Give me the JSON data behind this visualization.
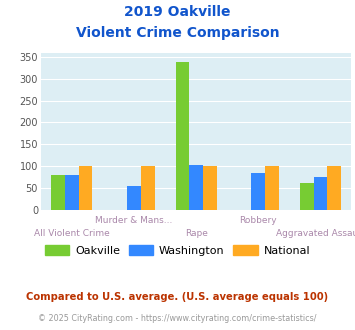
{
  "title_line1": "2019 Oakville",
  "title_line2": "Violent Crime Comparison",
  "categories": [
    "All Violent Crime",
    "Murder & Mans...",
    "Rape",
    "Robbery",
    "Aggravated Assault"
  ],
  "categories_top": [
    "",
    "Murder & Mans...",
    "",
    "Robbery",
    ""
  ],
  "categories_bottom": [
    "All Violent Crime",
    "",
    "Rape",
    "",
    "Aggravated Assault"
  ],
  "series": {
    "Oakville": [
      80,
      0,
      340,
      0,
      60
    ],
    "Washington": [
      80,
      55,
      103,
      85,
      75
    ],
    "National": [
      100,
      100,
      100,
      100,
      100
    ]
  },
  "colors": {
    "Oakville": "#77cc33",
    "Washington": "#3388ff",
    "National": "#ffaa22"
  },
  "ylim": [
    0,
    360
  ],
  "yticks": [
    0,
    50,
    100,
    150,
    200,
    250,
    300,
    350
  ],
  "plot_bg": "#ddeef4",
  "grid_color": "#ffffff",
  "title_color": "#1155cc",
  "label_top_color": "#aa88aa",
  "label_bot_color": "#aa88aa",
  "footnote1": "Compared to U.S. average. (U.S. average equals 100)",
  "footnote2": "© 2025 CityRating.com - https://www.cityrating.com/crime-statistics/",
  "footnote1_color": "#bb3300",
  "footnote2_color": "#999999",
  "legend_names": [
    "Oakville",
    "Washington",
    "National"
  ]
}
